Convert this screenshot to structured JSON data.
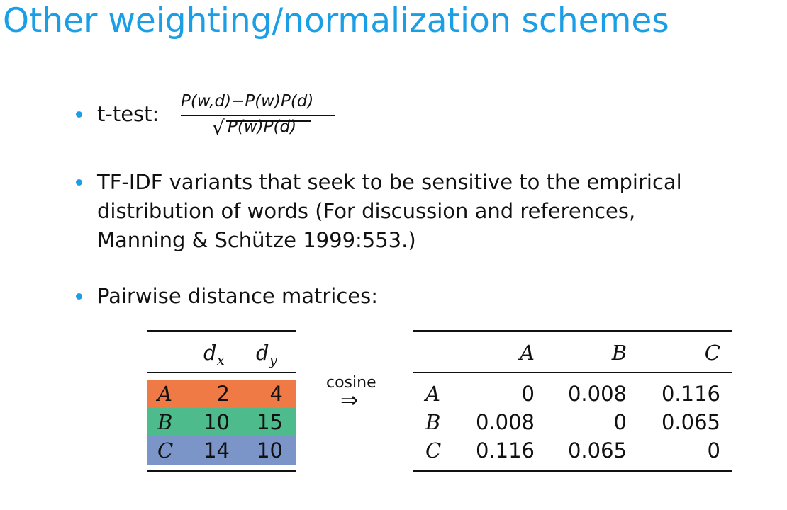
{
  "slide": {
    "title": "Other weighting/normalization schemes"
  },
  "bullets": [
    {
      "label": "t-test:",
      "formula": {
        "numerator": "P(w,d)−P(w)P(d)",
        "denominator": "P(w)P(d)"
      }
    },
    {
      "lines": [
        "TF-IDF variants that seek to be sensitive to the empirical",
        "distribution of words (For discussion and references,",
        "Manning & Schütze 1999:553.)"
      ]
    },
    {
      "text": "Pairwise distance matrices:"
    }
  ],
  "left_table": {
    "columns": [
      "d",
      "d"
    ],
    "column_subscripts": [
      "x",
      "y"
    ],
    "rows": [
      {
        "label": "A",
        "values": [
          "2",
          "4"
        ],
        "color": "#f07a45"
      },
      {
        "label": "B",
        "values": [
          "10",
          "15"
        ],
        "color": "#4dbb8c"
      },
      {
        "label": "C",
        "values": [
          "14",
          "10"
        ],
        "color": "#7c95c8"
      }
    ]
  },
  "arrow": {
    "label": "cosine",
    "symbol": "⇒"
  },
  "right_table": {
    "columns": [
      "A",
      "B",
      "C"
    ],
    "rows": [
      {
        "label": "A",
        "values": [
          "0",
          "0.008",
          "0.116"
        ]
      },
      {
        "label": "B",
        "values": [
          "0.008",
          "0",
          "0.065"
        ]
      },
      {
        "label": "C",
        "values": [
          "0.116",
          "0.065",
          "0"
        ]
      }
    ]
  },
  "colors": {
    "accent": "#1a9ee6",
    "row_A": "#f07a45",
    "row_B": "#4dbb8c",
    "row_C": "#7c95c8"
  }
}
